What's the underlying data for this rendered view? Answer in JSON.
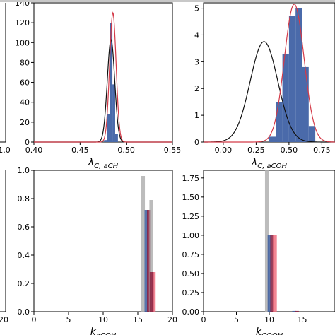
{
  "colors": {
    "hist_blue": "#4a6aaa",
    "fit_red": "#d43a48",
    "prior_black": "#111111",
    "gray_bar": "#b0b0b0",
    "navy_bar": "#3b5c9e",
    "maroon_bar": "#8a2040",
    "pink_bar": "#f07080"
  },
  "chart_data": [
    {
      "id": "panel-left-top-partial",
      "type": "bar",
      "x_tick_labels_visible": [
        "1.0"
      ],
      "note_visible": "partial panel cut at left edge"
    },
    {
      "id": "panel-lambda-ach",
      "type": "bar",
      "xlabel_main": "λ",
      "xlabel_sub": "C, aCH",
      "xlim": [
        0.4,
        0.55
      ],
      "ylim": [
        0,
        140
      ],
      "x_ticks": [
        0.4,
        0.45,
        0.5,
        0.55
      ],
      "x_tick_labels": [
        "0.40",
        "0.45",
        "0.50",
        "0.55"
      ],
      "y_ticks": [
        0,
        20,
        40,
        60,
        80,
        100,
        120,
        140
      ],
      "y_tick_labels": [
        "0",
        "20",
        "40",
        "60",
        "80",
        "100",
        "120",
        "140"
      ],
      "histogram": {
        "bins": [
          0.476,
          0.479,
          0.482,
          0.485,
          0.488,
          0.491
        ],
        "heights": [
          2,
          28,
          120,
          58,
          8
        ]
      },
      "fit_curve": {
        "type": "gaussian",
        "mu": 0.4855,
        "sigma": 0.0035,
        "peak": 130
      },
      "prior_curve": {
        "type": "gaussian",
        "mu": 0.4835,
        "sigma": 0.004,
        "peak": 103
      }
    },
    {
      "id": "panel-lambda-acoh",
      "type": "bar",
      "xlabel_main": "λ",
      "xlabel_sub": "C, aCOH",
      "xlim": [
        -0.15,
        0.85
      ],
      "ylim": [
        0,
        5.2
      ],
      "x_ticks": [
        0.0,
        0.25,
        0.5,
        0.75
      ],
      "x_tick_labels": [
        "0.00",
        "0.25",
        "0.50",
        "0.75"
      ],
      "y_ticks": [
        0,
        1,
        2,
        3,
        4,
        5
      ],
      "y_tick_labels": [
        "0",
        "1",
        "2",
        "3",
        "4",
        "5"
      ],
      "histogram": {
        "bins": [
          0.35,
          0.4,
          0.45,
          0.5,
          0.55,
          0.6,
          0.65,
          0.7
        ],
        "heights": [
          0.2,
          1.5,
          3.3,
          4.7,
          5.0,
          2.8,
          0.6
        ]
      },
      "fit_curve": {
        "type": "gaussian",
        "mu": 0.54,
        "sigma": 0.075,
        "peak": 5.15
      },
      "prior_curve": {
        "type": "gaussian",
        "mu": 0.31,
        "sigma": 0.105,
        "peak": 3.75
      }
    },
    {
      "id": "panel-left-bottom-partial",
      "type": "bar",
      "x_tick_labels_visible": [
        "20"
      ]
    },
    {
      "id": "panel-k-acoh",
      "type": "bar",
      "xlabel_main": "k",
      "xlabel_sub": "aCOH",
      "xlim": [
        0,
        20
      ],
      "ylim": [
        0,
        1.0
      ],
      "x_ticks": [
        0,
        5,
        10,
        15,
        20
      ],
      "x_tick_labels": [
        "0",
        "5",
        "10",
        "15",
        "20"
      ],
      "y_ticks": [
        0,
        0.2,
        0.4,
        0.6,
        0.8,
        1.0
      ],
      "y_tick_labels": [
        "0.0",
        "0.2",
        "0.4",
        "0.6",
        "0.8",
        "1.0"
      ],
      "bars": [
        {
          "color": "gray",
          "x": 15.75,
          "width": 0.55,
          "value": 0.96
        },
        {
          "color": "navy",
          "x": 16.25,
          "width": 0.55,
          "value": 0.72
        },
        {
          "color": "maroon",
          "x": 16.6,
          "width": 0.55,
          "value": 0.72
        },
        {
          "color": "gray",
          "x": 16.95,
          "width": 0.55,
          "value": 0.79
        },
        {
          "color": "pink",
          "x": 17.3,
          "width": 0.55,
          "value": 0.28
        },
        {
          "color": "maroon",
          "x": 17.0,
          "width": 0.55,
          "value": 0.28
        }
      ]
    },
    {
      "id": "panel-k-cooh",
      "type": "bar",
      "xlabel_main": "k",
      "xlabel_sub": "COOH",
      "xlim": [
        0,
        20
      ],
      "ylim": [
        0,
        1.85
      ],
      "x_ticks": [
        0,
        5,
        10,
        15
      ],
      "x_tick_labels": [
        "0",
        "5",
        "10",
        "15"
      ],
      "y_ticks": [
        0,
        0.25,
        0.5,
        0.75,
        1.0,
        1.25,
        1.5,
        1.75
      ],
      "y_tick_labels": [
        "0.00",
        "0.25",
        "0.50",
        "0.75",
        "1.00",
        "1.25",
        "1.50",
        "1.75"
      ],
      "bars": [
        {
          "color": "gray",
          "x": 9.65,
          "width": 0.6,
          "value": 1.85
        },
        {
          "color": "navy",
          "x": 10.05,
          "width": 0.6,
          "value": 1.0
        },
        {
          "color": "maroon",
          "x": 10.45,
          "width": 0.6,
          "value": 1.0
        },
        {
          "color": "pink",
          "x": 10.85,
          "width": 0.6,
          "value": 1.0
        },
        {
          "color": "navy",
          "x": 13.8,
          "width": 0.6,
          "value": 0.01
        },
        {
          "color": "maroon",
          "x": 14.2,
          "width": 0.6,
          "value": 0.01
        }
      ]
    }
  ]
}
